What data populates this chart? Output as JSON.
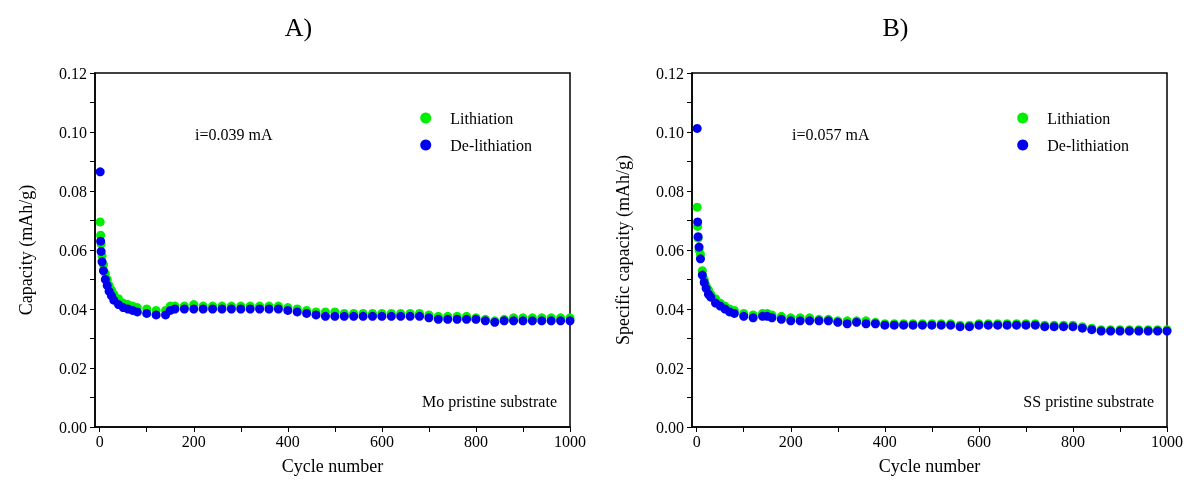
{
  "chart_data": [
    {
      "type": "scatter",
      "title": "A)",
      "xlabel": "Cycle number",
      "ylabel": "Capacity (mAh/g)",
      "annotations": [
        "i=0.039 mA",
        "Mo pristine substrate"
      ],
      "x": [
        1,
        2,
        3,
        5,
        8,
        12,
        16,
        20,
        25,
        30,
        40,
        50,
        60,
        70,
        80,
        100,
        120,
        140,
        150,
        160,
        180,
        200,
        220,
        240,
        260,
        280,
        300,
        320,
        340,
        360,
        380,
        400,
        420,
        440,
        460,
        480,
        500,
        520,
        540,
        560,
        580,
        600,
        620,
        640,
        660,
        680,
        700,
        720,
        740,
        760,
        780,
        800,
        820,
        840,
        860,
        880,
        900,
        920,
        940,
        960,
        980,
        1000
      ],
      "series": [
        {
          "name": "Lithiation",
          "color": "#00ee00",
          "values": [
            0.0695,
            0.065,
            0.062,
            0.058,
            0.055,
            0.052,
            0.05,
            0.048,
            0.0465,
            0.045,
            0.0435,
            0.042,
            0.0415,
            0.041,
            0.0405,
            0.04,
            0.0395,
            0.0395,
            0.041,
            0.041,
            0.041,
            0.0415,
            0.041,
            0.041,
            0.041,
            0.041,
            0.041,
            0.041,
            0.041,
            0.041,
            0.041,
            0.0405,
            0.04,
            0.0395,
            0.039,
            0.039,
            0.039,
            0.0385,
            0.0385,
            0.0385,
            0.0385,
            0.0385,
            0.0385,
            0.0385,
            0.0385,
            0.0385,
            0.038,
            0.0375,
            0.0375,
            0.0375,
            0.0375,
            0.037,
            0.0365,
            0.036,
            0.0365,
            0.037,
            0.037,
            0.037,
            0.037,
            0.037,
            0.037,
            0.037
          ]
        },
        {
          "name": "De-lithiation",
          "color": "#0000ee",
          "values": [
            0.0865,
            0.063,
            0.0595,
            0.056,
            0.053,
            0.05,
            0.048,
            0.046,
            0.0445,
            0.043,
            0.0415,
            0.0405,
            0.04,
            0.0395,
            0.039,
            0.0385,
            0.038,
            0.038,
            0.0395,
            0.04,
            0.04,
            0.04,
            0.04,
            0.04,
            0.04,
            0.04,
            0.04,
            0.04,
            0.04,
            0.04,
            0.04,
            0.0395,
            0.039,
            0.0385,
            0.038,
            0.0375,
            0.0375,
            0.0375,
            0.0375,
            0.0375,
            0.0375,
            0.0375,
            0.0375,
            0.0375,
            0.0375,
            0.0375,
            0.037,
            0.0365,
            0.0365,
            0.0365,
            0.0365,
            0.0365,
            0.036,
            0.0355,
            0.036,
            0.036,
            0.036,
            0.036,
            0.036,
            0.036,
            0.036,
            0.036
          ]
        }
      ],
      "xlim": [
        -10,
        1000
      ],
      "xticks": [
        0,
        {
          "value": 100,
          "label": null
        },
        200,
        {
          "value": 300,
          "label": null
        },
        400,
        {
          "value": 500,
          "label": null
        },
        600,
        {
          "value": 700,
          "label": null
        },
        800,
        {
          "value": 900,
          "label": null
        },
        1000
      ],
      "ylim": [
        0,
        0.12
      ],
      "yticks": [
        {
          "value": 0,
          "label": "0.00"
        },
        {
          "value": 0.01,
          "label": null
        },
        {
          "value": 0.02,
          "label": "0.02"
        },
        {
          "value": 0.03,
          "label": null
        },
        {
          "value": 0.04,
          "label": "0.04"
        },
        {
          "value": 0.05,
          "label": null
        },
        {
          "value": 0.06,
          "label": "0.06"
        },
        {
          "value": 0.07,
          "label": null
        },
        {
          "value": 0.08,
          "label": "0.08"
        },
        {
          "value": 0.09,
          "label": null
        },
        {
          "value": 0.1,
          "label": "0.10"
        },
        {
          "value": 0.11,
          "label": null
        },
        {
          "value": 0.12,
          "label": "0.12"
        }
      ],
      "legend": "top right",
      "marker": "circle",
      "grid": false
    },
    {
      "type": "scatter",
      "title": "B)",
      "xlabel": "Cycle number",
      "ylabel": "Specific capacity (mAh/g)",
      "annotations": [
        "i=0.057 mA",
        "SS pristine substrate"
      ],
      "x": [
        1,
        2,
        3,
        5,
        8,
        12,
        16,
        20,
        25,
        30,
        40,
        50,
        60,
        70,
        80,
        100,
        120,
        140,
        150,
        160,
        180,
        200,
        220,
        240,
        260,
        280,
        300,
        320,
        340,
        360,
        380,
        400,
        420,
        440,
        460,
        480,
        500,
        520,
        540,
        560,
        580,
        600,
        620,
        640,
        660,
        680,
        700,
        720,
        740,
        760,
        780,
        800,
        820,
        840,
        860,
        880,
        900,
        920,
        940,
        960,
        980,
        1000
      ],
      "series": [
        {
          "name": "Lithiation",
          "color": "#00ee00",
          "values": [
            0.0745,
            0.068,
            0.064,
            0.06,
            0.0585,
            0.053,
            0.05,
            0.048,
            0.0465,
            0.045,
            0.0435,
            0.042,
            0.041,
            0.04,
            0.0395,
            0.0385,
            0.038,
            0.0385,
            0.0385,
            0.038,
            0.0375,
            0.037,
            0.037,
            0.037,
            0.0365,
            0.0365,
            0.036,
            0.036,
            0.036,
            0.036,
            0.0355,
            0.035,
            0.035,
            0.035,
            0.035,
            0.035,
            0.035,
            0.035,
            0.035,
            0.0345,
            0.0345,
            0.035,
            0.035,
            0.035,
            0.035,
            0.035,
            0.035,
            0.035,
            0.0345,
            0.0345,
            0.0345,
            0.0345,
            0.034,
            0.0335,
            0.033,
            0.033,
            0.033,
            0.033,
            0.033,
            0.033,
            0.033,
            0.033
          ]
        },
        {
          "name": "De-lithiation",
          "color": "#0000ee",
          "values": [
            0.1012,
            0.0695,
            0.0645,
            0.061,
            0.057,
            0.0515,
            0.049,
            0.047,
            0.045,
            0.044,
            0.042,
            0.041,
            0.04,
            0.039,
            0.0385,
            0.0375,
            0.037,
            0.0375,
            0.0375,
            0.037,
            0.0365,
            0.036,
            0.036,
            0.036,
            0.036,
            0.036,
            0.0355,
            0.035,
            0.0355,
            0.035,
            0.035,
            0.0345,
            0.0345,
            0.0345,
            0.0345,
            0.0345,
            0.0345,
            0.0345,
            0.0345,
            0.034,
            0.034,
            0.0345,
            0.0345,
            0.0345,
            0.0345,
            0.0345,
            0.0345,
            0.0345,
            0.034,
            0.034,
            0.034,
            0.034,
            0.0335,
            0.033,
            0.0325,
            0.0325,
            0.0325,
            0.0325,
            0.0325,
            0.0325,
            0.0325,
            0.0325
          ]
        }
      ],
      "xlim": [
        -10,
        1000
      ],
      "xticks": [
        0,
        {
          "value": 100,
          "label": null
        },
        200,
        {
          "value": 300,
          "label": null
        },
        400,
        {
          "value": 500,
          "label": null
        },
        600,
        {
          "value": 700,
          "label": null
        },
        800,
        {
          "value": 900,
          "label": null
        },
        1000
      ],
      "ylim": [
        0,
        0.12
      ],
      "yticks": [
        {
          "value": 0,
          "label": "0.00"
        },
        {
          "value": 0.01,
          "label": null
        },
        {
          "value": 0.02,
          "label": "0.02"
        },
        {
          "value": 0.03,
          "label": null
        },
        {
          "value": 0.04,
          "label": "0.04"
        },
        {
          "value": 0.05,
          "label": null
        },
        {
          "value": 0.06,
          "label": "0.06"
        },
        {
          "value": 0.07,
          "label": null
        },
        {
          "value": 0.08,
          "label": "0.08"
        },
        {
          "value": 0.09,
          "label": null
        },
        {
          "value": 0.1,
          "label": "0.10"
        },
        {
          "value": 0.11,
          "label": null
        },
        {
          "value": 0.12,
          "label": "0.12"
        }
      ],
      "legend": "top right",
      "marker": "circle",
      "grid": false
    }
  ]
}
